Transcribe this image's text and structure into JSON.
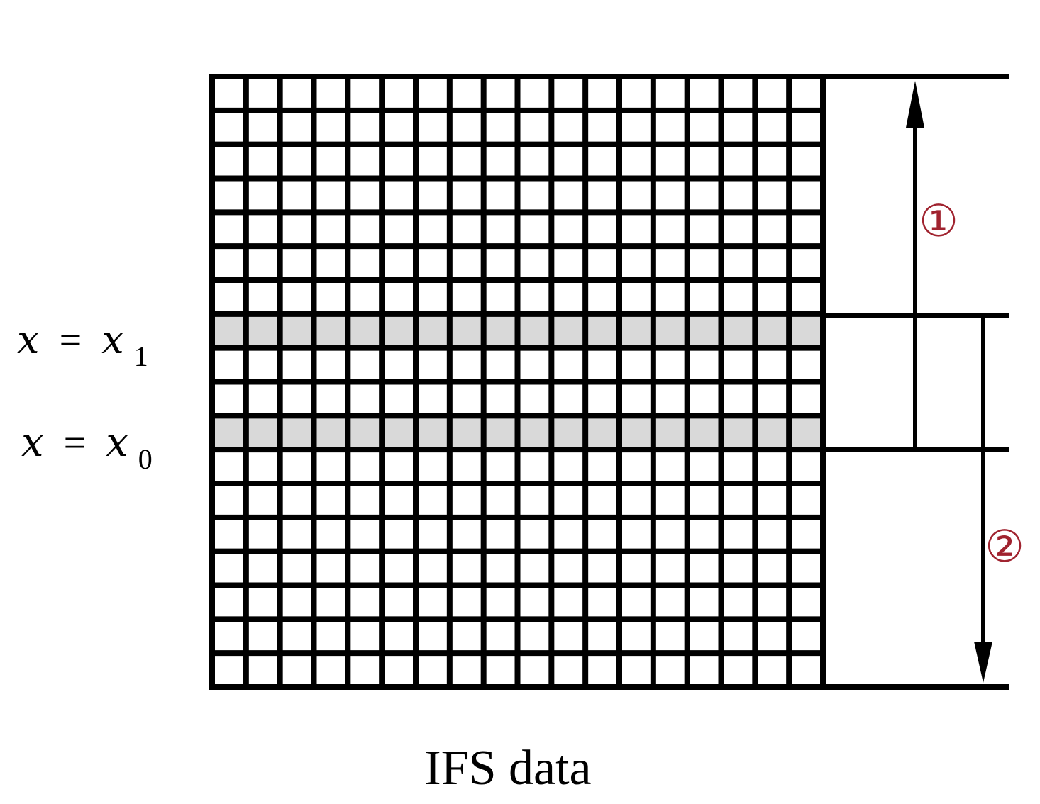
{
  "diagram": {
    "grid": {
      "rows": 18,
      "cols": 18,
      "highlighted_rows": [
        7,
        10
      ]
    },
    "labels": {
      "x1": {
        "var": "x",
        "eq": "=",
        "rhs": "x",
        "sub": "1"
      },
      "x0": {
        "var": "x",
        "eq": "=",
        "rhs": "x",
        "sub": "0"
      }
    },
    "markers": {
      "one": "①",
      "two": "②"
    },
    "caption": "IFS data",
    "colors": {
      "line": "#000000",
      "highlight": "#d9d9d9",
      "marker": "#a0232f",
      "cell": "#ffffff"
    }
  }
}
